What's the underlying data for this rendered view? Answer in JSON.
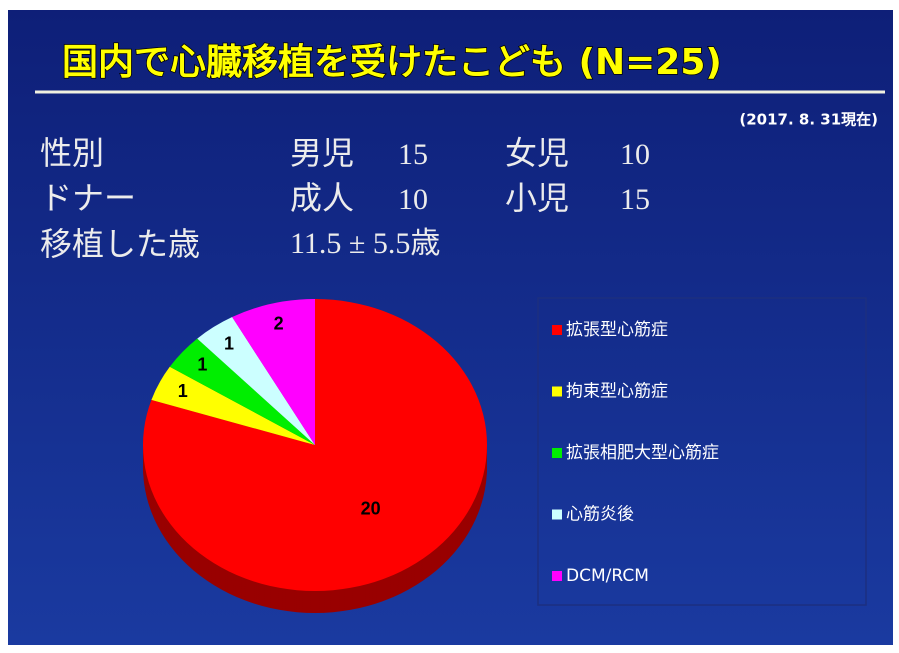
{
  "header": {
    "title": "国内で心臓移植を受けたこども (N=25)",
    "date": "(2017. 8. 31現在)"
  },
  "stats": [
    {
      "label": "性別",
      "items": [
        {
          "label": "男児",
          "value": 15
        },
        {
          "label": "女児",
          "value": 10
        }
      ]
    },
    {
      "label": "ドナー",
      "items": [
        {
          "label": "成人",
          "value": 10
        },
        {
          "label": "小児",
          "value": 15
        }
      ]
    },
    {
      "label": "移植した歳",
      "text": "11.5 ± 5.5歳"
    }
  ],
  "chart_data": {
    "type": "pie",
    "series": [
      {
        "name": "拡張型心筋症",
        "color": "#ff0000",
        "values": [
          20
        ]
      },
      {
        "name": "拘束型心筋症",
        "color": "#ffff00",
        "values": [
          1
        ]
      },
      {
        "name": "拡張相肥大型心筋症",
        "color": "#00ee00",
        "values": [
          1
        ]
      },
      {
        "name": "心筋炎後",
        "color": "#ccffff",
        "values": [
          1
        ]
      },
      {
        "name": "DCM/RCM",
        "color": "#ff00ff",
        "values": [
          2
        ]
      }
    ]
  }
}
